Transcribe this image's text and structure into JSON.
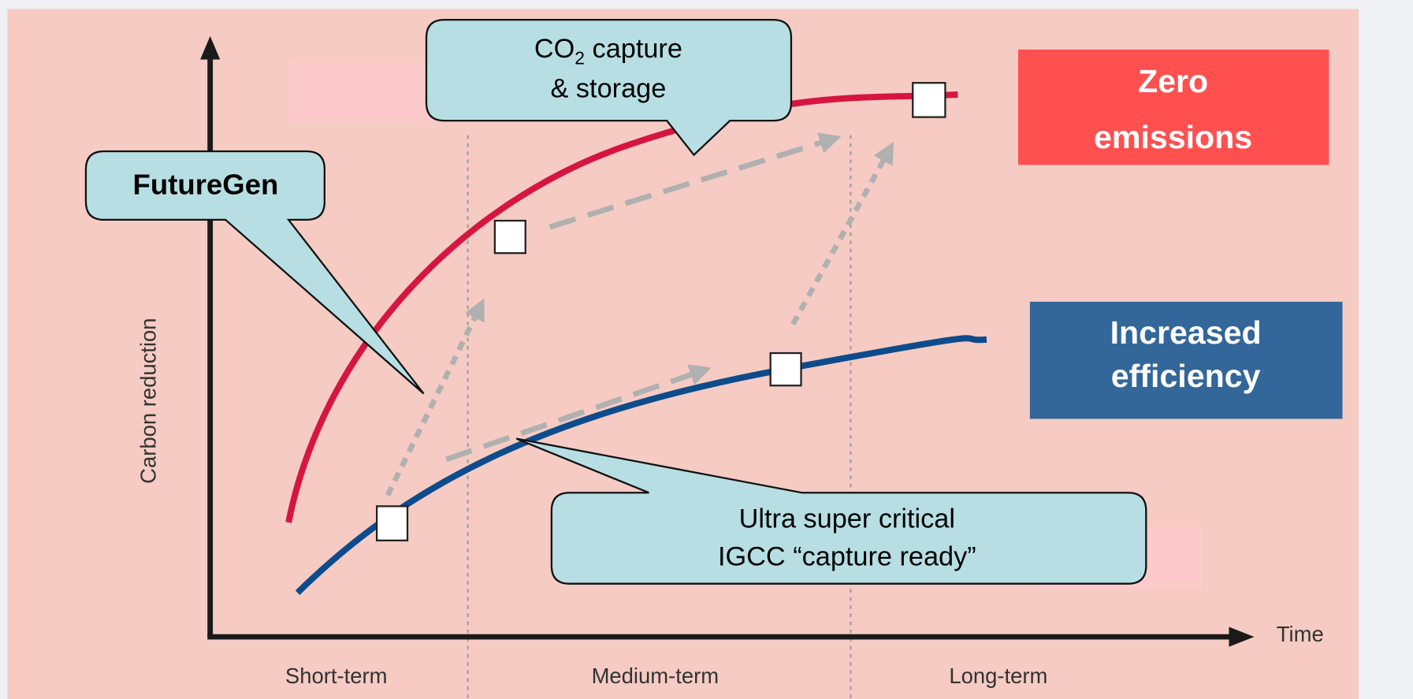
{
  "axes": {
    "y_label": "Carbon reduction",
    "x_label": "Time"
  },
  "phases": [
    "Short-term",
    "Medium-term",
    "Long-term"
  ],
  "callouts": {
    "co2": {
      "prefix": "CO",
      "subscript": "2",
      "rest": " capture",
      "line2": "& storage"
    },
    "futuregen": "FutureGen",
    "usc": [
      "Ultra super critical",
      "IGCC “capture ready”"
    ]
  },
  "boxes": [
    {
      "lines": [
        "Zero",
        "emissions"
      ]
    },
    {
      "lines": [
        "Increased",
        "efficiency"
      ]
    }
  ]
}
